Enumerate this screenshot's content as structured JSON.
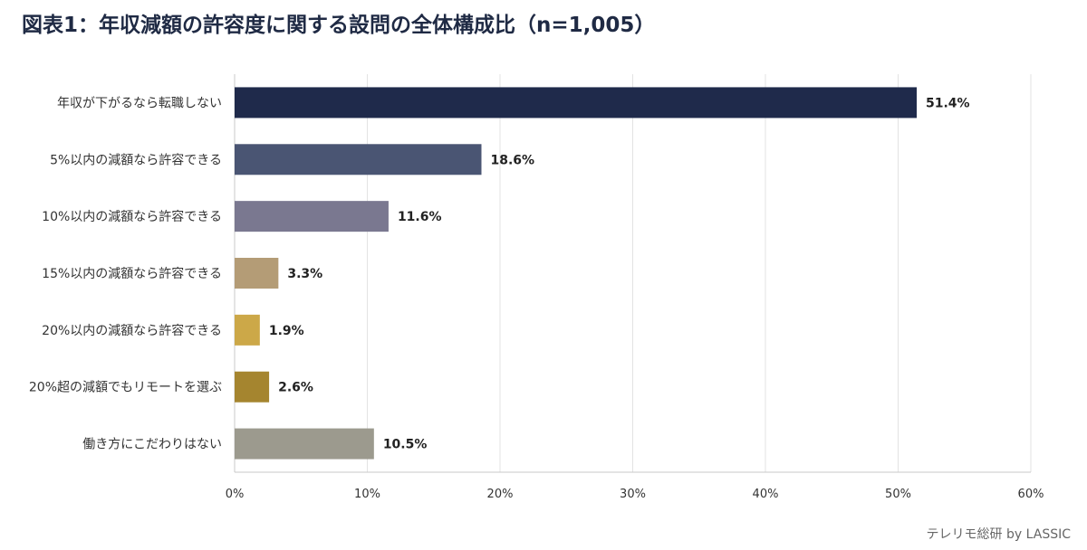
{
  "chart_data": {
    "type": "bar",
    "orientation": "horizontal",
    "title": "図表1：年収減額の許容度に関する設問の全体構成比（n=1,005）",
    "categories": [
      "年収が下がるなら転職しない",
      "5%以内の減額なら許容できる",
      "10%以内の減額なら許容できる",
      "15%以内の減額なら許容できる",
      "20%以内の減額なら許容できる",
      "20%超の減額でもリモートを選ぶ",
      "働き方にこだわりはない"
    ],
    "values": [
      51.4,
      18.6,
      11.6,
      3.3,
      1.9,
      2.6,
      10.5
    ],
    "data_labels": [
      "51.4%",
      "18.6%",
      "11.6%",
      "3.3%",
      "1.9%",
      "2.6%",
      "10.5%"
    ],
    "colors": [
      "#1f2a4b",
      "#4a5573",
      "#7a7890",
      "#b49c76",
      "#cca848",
      "#a5852f",
      "#9c9a8e"
    ],
    "xlim": [
      0,
      60
    ],
    "xticks": [
      0,
      10,
      20,
      30,
      40,
      50,
      60
    ],
    "xtick_labels": [
      "0%",
      "10%",
      "20%",
      "30%",
      "40%",
      "50%",
      "60%"
    ],
    "grid": true,
    "legend": "none"
  },
  "footer": {
    "credit": "テレリモ総研 by LASSIC"
  }
}
